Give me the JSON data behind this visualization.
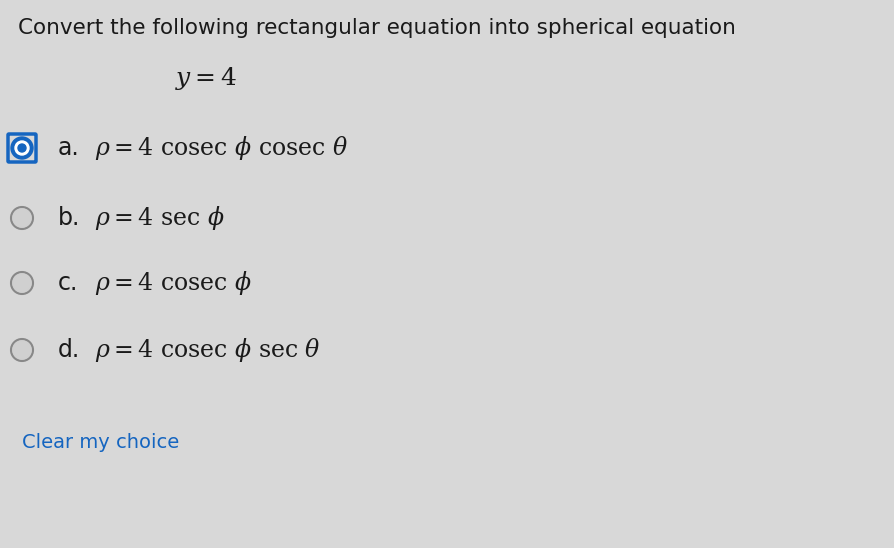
{
  "title": "Convert the following rectangular equation into spherical equation",
  "equation": "$y = 4$",
  "options": [
    {
      "label": "a.",
      "text_parts": [
        [
          "$\\rho = 4$ ",
          false
        ],
        [
          "$cosec\\ \\phi\\ cosec\\ \\theta$",
          false
        ]
      ],
      "full_text": "$\\rho = 4\\ \\mathrm{cosec}\\ \\phi\\ \\mathrm{cosec}\\ \\theta$",
      "selected": true
    },
    {
      "label": "b.",
      "full_text": "$\\rho = 4\\ \\mathrm{sec}\\ \\phi$",
      "selected": false
    },
    {
      "label": "c.",
      "full_text": "$\\rho = 4\\ \\mathrm{cosec}\\ \\phi$",
      "selected": false
    },
    {
      "label": "d.",
      "full_text": "$\\rho = 4\\ \\mathrm{cosec}\\ \\phi\\ \\mathrm{sec}\\ \\theta$",
      "selected": false
    }
  ],
  "clear_choice_text": "Clear my choice",
  "bg_color": "#d8d8d8",
  "text_color": "#1a1a1a",
  "selected_radio_border": "#1565c0",
  "selected_radio_fill": "#1565c0",
  "unselected_radio_border": "#888888",
  "clear_color": "#1565c0",
  "title_fontsize": 15.5,
  "option_fontsize": 17,
  "equation_fontsize": 18,
  "clear_fontsize": 14
}
